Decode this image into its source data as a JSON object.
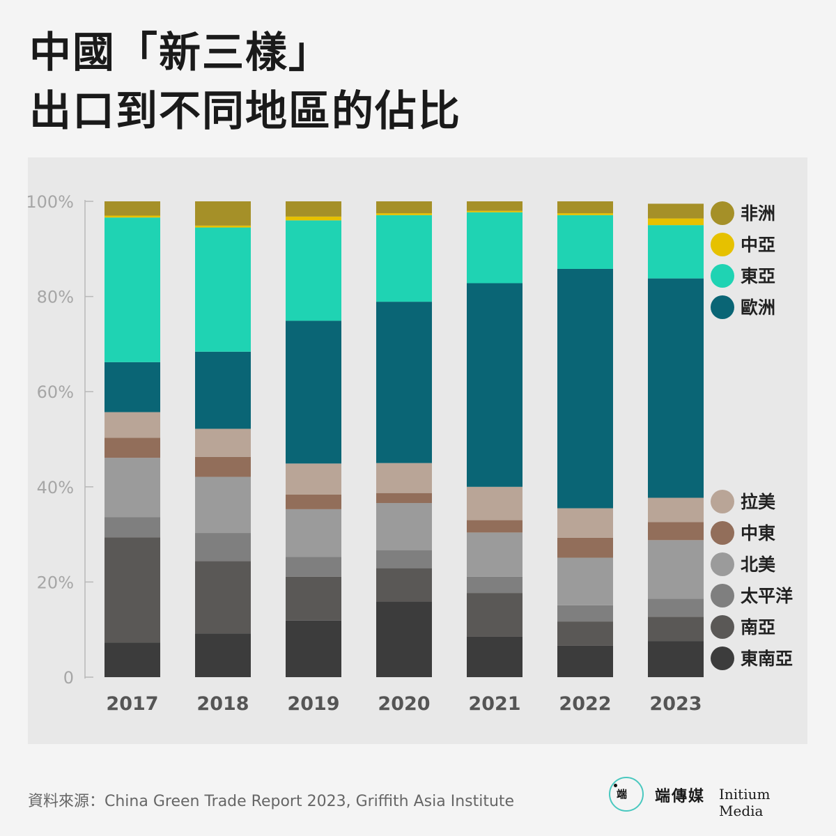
{
  "title": {
    "line1": "中國「新三樣」",
    "line2": "出口到不同地區的佔比"
  },
  "source": "資料來源：China Green Trade Report 2023, Griffith Asia Institute",
  "brand": {
    "mark": "端",
    "chinese": "端傳媒",
    "english": "Initium Media",
    "accent_color": "#49c8bf"
  },
  "chart_data": {
    "type": "bar",
    "stacked": true,
    "categories": [
      "2017",
      "2018",
      "2019",
      "2020",
      "2021",
      "2022",
      "2023"
    ],
    "ylim": [
      0,
      100
    ],
    "yticks": [
      0,
      20,
      40,
      60,
      80,
      100
    ],
    "ytick_labels": [
      "0",
      "20%",
      "40%",
      "60%",
      "80%",
      "100%"
    ],
    "series": [
      {
        "name": "東南亞",
        "color": "#3c3c3c",
        "values": [
          7.3,
          9.2,
          11.9,
          15.9,
          8.5,
          6.6,
          7.6
        ]
      },
      {
        "name": "南亞",
        "color": "#5a5856",
        "values": [
          22.1,
          15.2,
          9.2,
          7.0,
          9.2,
          5.1,
          5.1
        ]
      },
      {
        "name": "太平洋",
        "color": "#7f7f7f",
        "values": [
          4.2,
          5.9,
          4.2,
          3.8,
          3.4,
          3.4,
          3.8
        ]
      },
      {
        "name": "北美",
        "color": "#9b9b9b",
        "values": [
          12.5,
          11.8,
          10.0,
          9.9,
          9.3,
          10.0,
          12.3
        ]
      },
      {
        "name": "中東",
        "color": "#926e5a",
        "values": [
          4.2,
          4.2,
          3.1,
          2.1,
          2.6,
          4.2,
          3.8
        ]
      },
      {
        "name": "拉美",
        "color": "#b9a597",
        "values": [
          5.4,
          5.9,
          6.5,
          6.3,
          7.0,
          6.2,
          5.1
        ]
      },
      {
        "name": "歐洲",
        "color": "#0a6575",
        "values": [
          10.5,
          16.2,
          30.0,
          33.9,
          42.8,
          50.3,
          46.1
        ]
      },
      {
        "name": "東亞",
        "color": "#1fd3b3",
        "values": [
          30.4,
          26.1,
          21.1,
          18.2,
          14.9,
          11.3,
          11.2
        ]
      },
      {
        "name": "中亞",
        "color": "#e6c100",
        "values": [
          0.4,
          0.4,
          0.8,
          0.4,
          0.3,
          0.4,
          1.4
        ]
      },
      {
        "name": "非洲",
        "color": "#a59028",
        "values": [
          3.0,
          5.1,
          3.2,
          2.5,
          2.0,
          2.5,
          3.1
        ]
      }
    ],
    "legend": {
      "top_group": [
        "非洲",
        "中亞",
        "東亞",
        "歐洲"
      ],
      "bottom_group": [
        "拉美",
        "中東",
        "北美",
        "太平洋",
        "南亞",
        "東南亞"
      ],
      "position": "right"
    },
    "grid": false
  }
}
